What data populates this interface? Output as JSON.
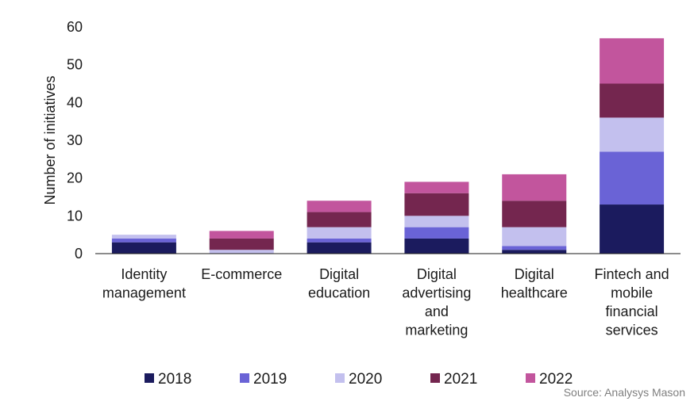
{
  "chart_data": {
    "type": "bar",
    "stacked": true,
    "categories": [
      [
        "Identity",
        "management"
      ],
      [
        "E-commerce"
      ],
      [
        "Digital",
        "education"
      ],
      [
        "Digital",
        "advertising",
        "and",
        "marketing"
      ],
      [
        "Digital",
        "healthcare"
      ],
      [
        "Fintech and",
        "mobile",
        "financial",
        "services"
      ]
    ],
    "series": [
      {
        "name": "2018",
        "color": "#1b1b5e",
        "values": [
          3,
          0,
          3,
          4,
          1,
          13
        ]
      },
      {
        "name": "2019",
        "color": "#6a63d6",
        "values": [
          1,
          0,
          1,
          3,
          1,
          14
        ]
      },
      {
        "name": "2020",
        "color": "#c3c0ee",
        "values": [
          1,
          1,
          3,
          3,
          5,
          9
        ]
      },
      {
        "name": "2021",
        "color": "#74264f",
        "values": [
          0,
          3,
          4,
          6,
          7,
          9
        ]
      },
      {
        "name": "2022",
        "color": "#c2559d",
        "values": [
          0,
          2,
          3,
          3,
          7,
          12
        ]
      }
    ],
    "ylabel": "Number of initiatives",
    "ylim": [
      0,
      60
    ],
    "yticks": [
      0,
      10,
      20,
      30,
      40,
      50,
      60
    ],
    "grid": false,
    "legend_position": "bottom"
  },
  "source": "Source: Analysys Mason"
}
